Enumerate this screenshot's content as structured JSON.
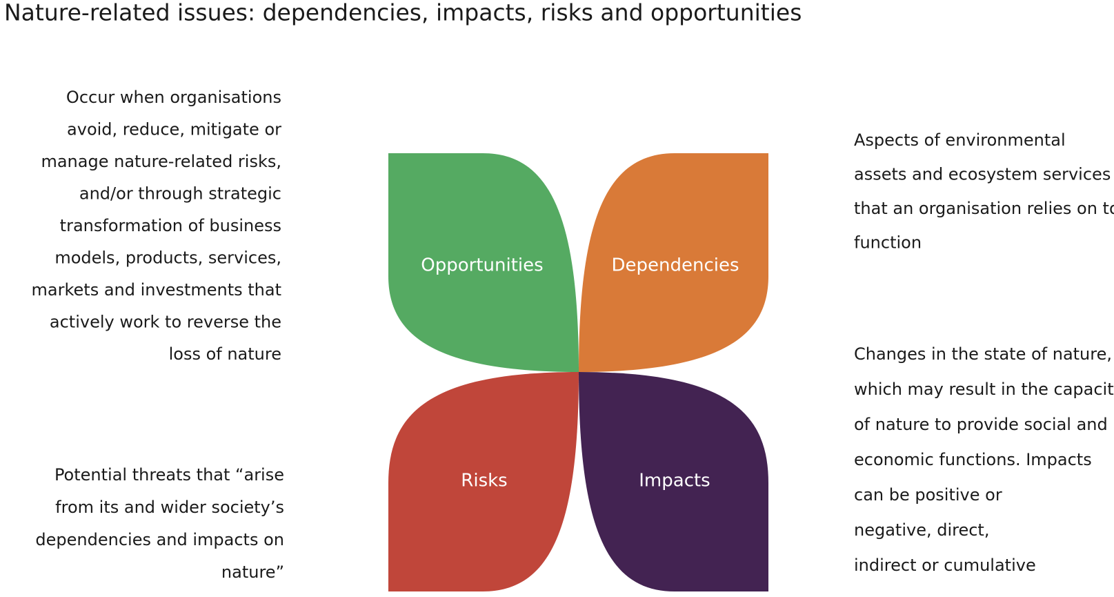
{
  "header": {
    "title": "Nature-related issues: dependencies, impacts, risks and opportunities"
  },
  "petals": [
    {
      "label": "Opportunities",
      "color": "#55aa62",
      "description": [
        "Occur when organisations",
        "avoid, reduce, mitigate or",
        "manage nature-related risks,",
        "and/or through strategic",
        "transformation of business",
        "models, products, services,",
        "markets and investments that",
        "actively work to reverse the",
        "loss of nature"
      ]
    },
    {
      "label": "Dependencies",
      "color": "#d97a38",
      "description": [
        "Aspects of environmental",
        "assets and ecosystem services",
        "that an organisation relies on to",
        "function"
      ]
    },
    {
      "label": "Risks",
      "color": "#c0463a",
      "description": [
        "Potential threats that “arise",
        "from its and wider society’s",
        "dependencies and impacts on",
        "nature”"
      ]
    },
    {
      "label": "Impacts",
      "color": "#432352",
      "description": [
        "Changes in the state of nature,",
        "which may result in the capacity",
        "of nature to provide social and",
        "economic functions. Impacts",
        "can be positive or",
        "negative, direct,",
        "indirect or cumulative"
      ]
    }
  ]
}
